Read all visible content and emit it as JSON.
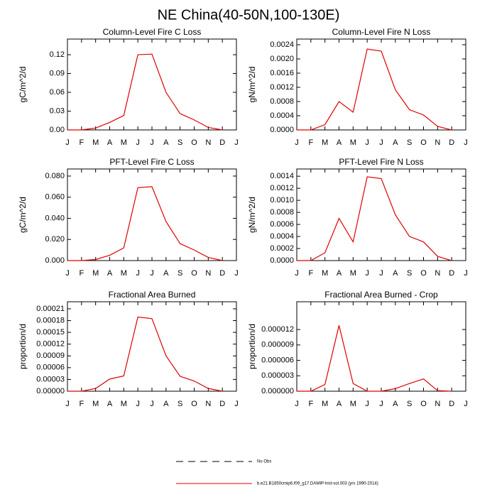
{
  "title": "NE China(40-50N,100-130E)",
  "chart_data": [
    {
      "type": "line",
      "title": "Column-Level Fire C Loss",
      "y_label": "gC/m^2/d",
      "categories": [
        "J",
        "F",
        "M",
        "A",
        "M",
        "J",
        "J",
        "A",
        "S",
        "O",
        "N",
        "D",
        "J"
      ],
      "values": [
        0,
        0,
        0.003,
        0.012,
        0.023,
        0.12,
        0.121,
        0.06,
        0.026,
        0.016,
        0.004,
        0,
        null
      ],
      "color": "#e00000",
      "ylim": [
        0,
        0.145
      ],
      "yticks": [
        {
          "value": 0,
          "label": "0.00"
        },
        0.03,
        0.06,
        0.09,
        0.12
      ]
    },
    {
      "type": "line",
      "title": "Column-Level Fire N Loss",
      "y_label": "gN/m^2/d",
      "categories": [
        "J",
        "F",
        "M",
        "A",
        "M",
        "J",
        "J",
        "A",
        "S",
        "O",
        "N",
        "D",
        "J"
      ],
      "values": [
        0,
        0,
        0.00015,
        0.0008,
        0.0005,
        0.00228,
        0.00222,
        0.00113,
        0.00057,
        0.00042,
        0.0001,
        0,
        null
      ],
      "color": "#e00000",
      "ylim": [
        0,
        0.00256
      ],
      "yticks": [
        {
          "value": 0,
          "label": "0.0000"
        },
        0.0004,
        0.0008,
        0.0012,
        0.0016,
        {
          "value": 0.002,
          "label": "0.0020"
        },
        0.0024
      ]
    },
    {
      "type": "line",
      "title": "PFT-Level Fire C Loss",
      "y_label": "gC/m^2/d",
      "categories": [
        "J",
        "F",
        "M",
        "A",
        "M",
        "J",
        "J",
        "A",
        "S",
        "O",
        "N",
        "D",
        "J"
      ],
      "values": [
        0,
        0,
        0.001,
        0.005,
        0.012,
        0.069,
        0.07,
        0.037,
        0.016,
        0.01,
        0.003,
        0,
        null
      ],
      "color": "#e00000",
      "ylim": [
        0,
        0.0867
      ],
      "yticks": [
        {
          "value": 0,
          "label": "0.000"
        },
        {
          "value": 0.02,
          "label": "0.020"
        },
        {
          "value": 0.04,
          "label": "0.040"
        },
        {
          "value": 0.06,
          "label": "0.060"
        },
        {
          "value": 0.08,
          "label": "0.080"
        }
      ]
    },
    {
      "type": "line",
      "title": "PFT-Level Fire N Loss",
      "y_label": "gN/m^2/d",
      "categories": [
        "J",
        "F",
        "M",
        "A",
        "M",
        "J",
        "J",
        "A",
        "S",
        "O",
        "N",
        "D",
        "J"
      ],
      "values": [
        0,
        0,
        0.00013,
        0.0007,
        0.00031,
        0.00139,
        0.00136,
        0.00076,
        0.0004,
        0.00031,
        7e-05,
        0,
        null
      ],
      "color": "#e00000",
      "ylim": [
        0,
        0.00152
      ],
      "yticks": [
        {
          "value": 0,
          "label": "0.0000"
        },
        0.0002,
        0.0004,
        0.0006,
        0.0008,
        {
          "value": 0.001,
          "label": "0.0010"
        },
        0.0012,
        0.0014
      ]
    },
    {
      "type": "line",
      "title": "Fractional Area Burned",
      "y_label": "proportion/d",
      "categories": [
        "J",
        "F",
        "M",
        "A",
        "M",
        "J",
        "J",
        "A",
        "S",
        "O",
        "N",
        "D",
        "J"
      ],
      "values": [
        0,
        0,
        7e-06,
        3.1e-05,
        3.9e-05,
        0.000189,
        0.000185,
        9e-05,
        3.8e-05,
        2.6e-05,
        7e-06,
        0,
        null
      ],
      "color": "#e00000",
      "ylim": [
        0,
        0.000228
      ],
      "yticks": [
        {
          "value": 0,
          "label": "0.00000"
        },
        3e-05,
        6e-05,
        9e-05,
        0.00012,
        0.00015,
        0.00018,
        0.00021
      ]
    },
    {
      "type": "line",
      "title": "Fractional Area Burned - Crop",
      "y_label": "proportion/d",
      "categories": [
        "J",
        "F",
        "M",
        "A",
        "M",
        "J",
        "J",
        "A",
        "S",
        "O",
        "N",
        "D",
        "J"
      ],
      "values": [
        0,
        0,
        1.3e-06,
        1.28e-05,
        1.5e-06,
        0,
        0,
        5e-07,
        1.5e-06,
        2.4e-06,
        1e-07,
        0,
        null
      ],
      "color": "#e00000",
      "ylim": [
        0,
        1.74e-05
      ],
      "yticks": [
        {
          "value": 0,
          "label": "0.000000"
        },
        3e-06,
        6e-06,
        9e-06,
        1.2e-05
      ]
    }
  ],
  "legend": [
    {
      "name": "No Obs",
      "color": "#000000",
      "dash": true
    },
    {
      "name": "b.e21.B1850cmip6.f09_g17.DAMIP-hist-sol.003 (yrs 1990-2014)",
      "color": "#e00000",
      "dash": false
    }
  ]
}
